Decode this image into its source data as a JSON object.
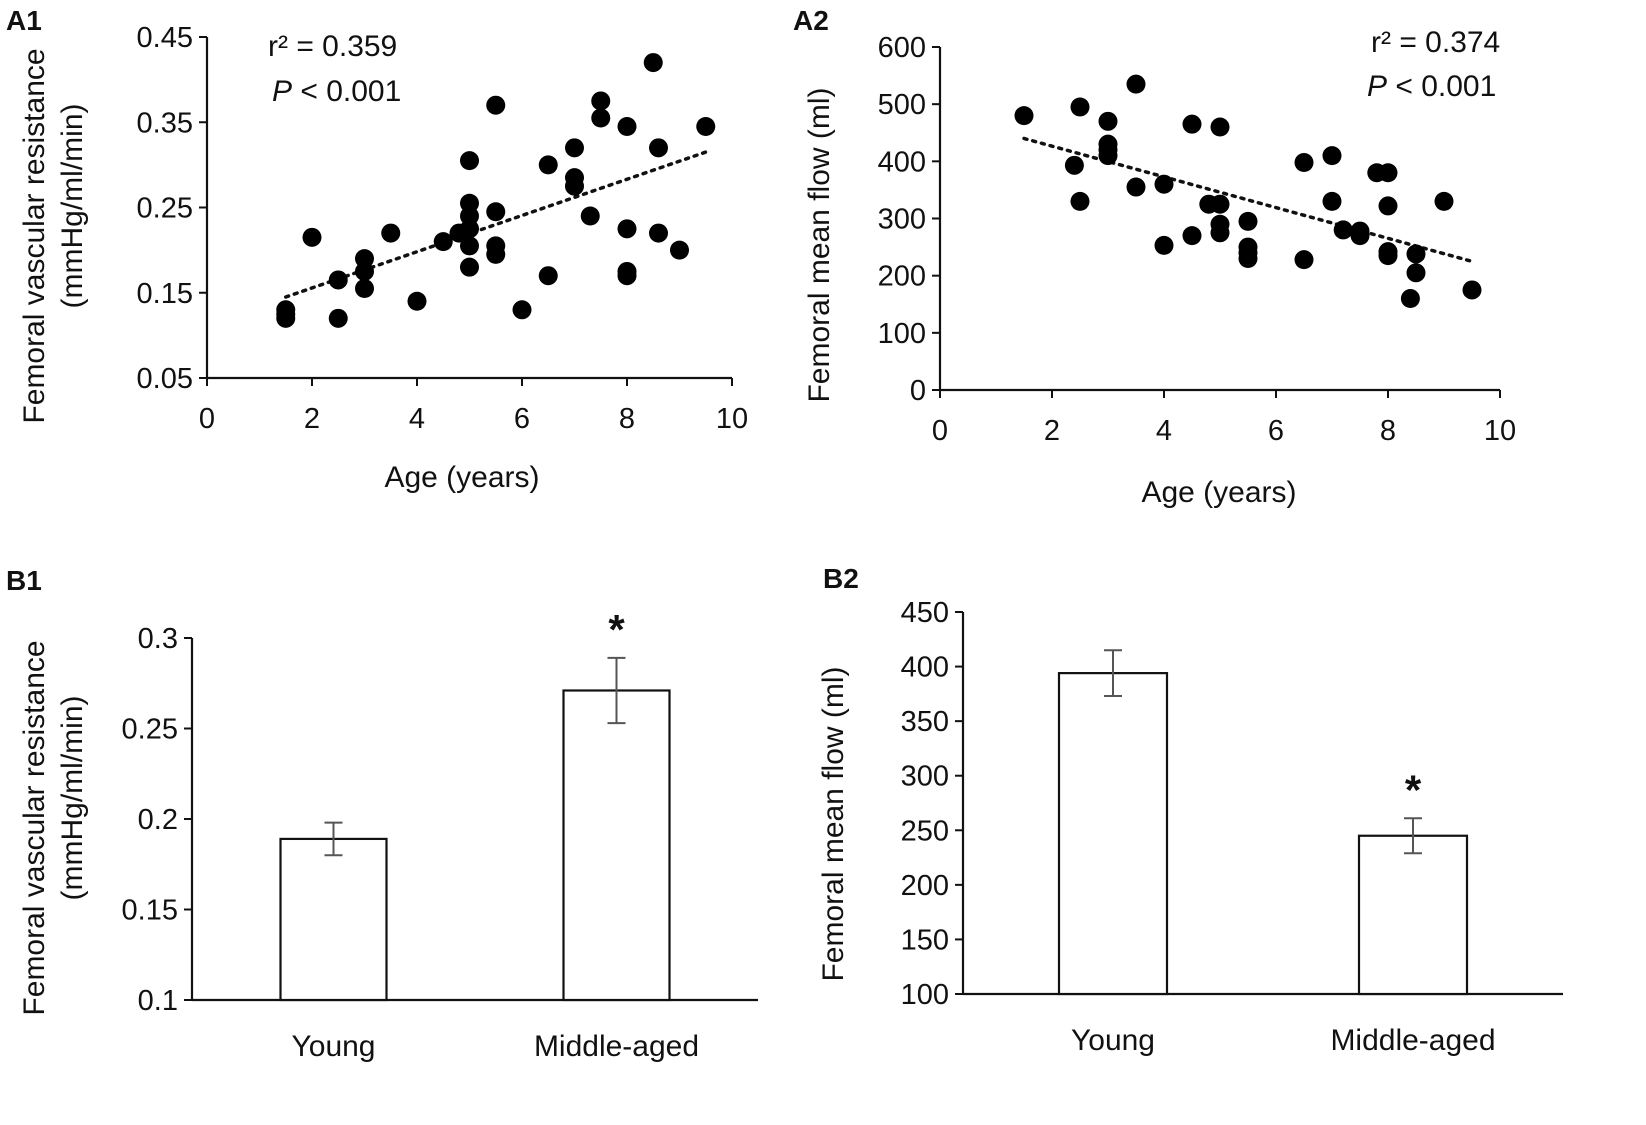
{
  "chart_data": [
    {
      "id": "a1",
      "panel_label": "A1",
      "type": "scatter",
      "xlabel": "Age (years)",
      "ylabel_line1": "Femoral vascular resistance",
      "ylabel_line2": "(mmHg/ml/min)",
      "xlim": [
        0,
        10
      ],
      "ylim": [
        0.05,
        0.45
      ],
      "x_ticks": [
        0,
        2,
        4,
        6,
        8,
        10
      ],
      "x_tick_labels": [
        "0",
        "2",
        "4",
        "6",
        "8",
        "10"
      ],
      "y_ticks": [
        0.05,
        0.15,
        0.25,
        0.35,
        0.45
      ],
      "y_tick_labels": [
        "0.05",
        "0.15",
        "0.25",
        "0.35",
        "0.45"
      ],
      "stats": {
        "r2_label": "r² = 0.359",
        "p_letter": "P",
        "p_rest": " < 0.001"
      },
      "trendline": {
        "x": [
          1.5,
          9.5
        ],
        "y": [
          0.145,
          0.315
        ]
      },
      "points": [
        [
          1.5,
          0.13
        ],
        [
          1.5,
          0.12
        ],
        [
          1.5,
          0.125
        ],
        [
          2.0,
          0.215
        ],
        [
          2.5,
          0.165
        ],
        [
          2.5,
          0.12
        ],
        [
          3.0,
          0.19
        ],
        [
          3.0,
          0.175
        ],
        [
          3.0,
          0.155
        ],
        [
          3.5,
          0.22
        ],
        [
          4.0,
          0.14
        ],
        [
          4.5,
          0.21
        ],
        [
          4.8,
          0.22
        ],
        [
          5.0,
          0.305
        ],
        [
          5.0,
          0.255
        ],
        [
          5.0,
          0.24
        ],
        [
          5.0,
          0.225
        ],
        [
          5.0,
          0.205
        ],
        [
          5.0,
          0.18
        ],
        [
          5.5,
          0.37
        ],
        [
          5.5,
          0.245
        ],
        [
          5.5,
          0.205
        ],
        [
          5.5,
          0.195
        ],
        [
          6.0,
          0.13
        ],
        [
          6.5,
          0.3
        ],
        [
          6.5,
          0.17
        ],
        [
          7.0,
          0.32
        ],
        [
          7.0,
          0.285
        ],
        [
          7.0,
          0.275
        ],
        [
          7.3,
          0.24
        ],
        [
          7.5,
          0.375
        ],
        [
          7.5,
          0.355
        ],
        [
          8.0,
          0.345
        ],
        [
          8.0,
          0.225
        ],
        [
          8.0,
          0.175
        ],
        [
          8.0,
          0.17
        ],
        [
          8.5,
          0.42
        ],
        [
          8.6,
          0.32
        ],
        [
          8.6,
          0.22
        ],
        [
          9.0,
          0.2
        ],
        [
          9.5,
          0.345
        ]
      ]
    },
    {
      "id": "a2",
      "panel_label": "A2",
      "type": "scatter",
      "xlabel": "Age (years)",
      "ylabel_line1": "Femoral mean flow (ml)",
      "ylabel_line2": "",
      "xlim": [
        0,
        10
      ],
      "ylim": [
        0,
        600
      ],
      "x_ticks": [
        0,
        2,
        4,
        6,
        8,
        10
      ],
      "x_tick_labels": [
        "0",
        "2",
        "4",
        "6",
        "8",
        "10"
      ],
      "y_ticks": [
        0,
        100,
        200,
        300,
        400,
        500,
        600
      ],
      "y_tick_labels": [
        "0",
        "100",
        "200",
        "300",
        "400",
        "500",
        "600"
      ],
      "stats": {
        "r2_label": "r² = 0.374",
        "p_letter": "P",
        "p_rest": " < 0.001"
      },
      "trendline": {
        "x": [
          1.5,
          9.5
        ],
        "y": [
          440,
          225
        ]
      },
      "points": [
        [
          1.5,
          480
        ],
        [
          2.4,
          393
        ],
        [
          2.5,
          495
        ],
        [
          2.5,
          330
        ],
        [
          3.0,
          470
        ],
        [
          3.0,
          430
        ],
        [
          3.0,
          420
        ],
        [
          3.0,
          410
        ],
        [
          3.5,
          535
        ],
        [
          3.5,
          355
        ],
        [
          4.0,
          360
        ],
        [
          4.0,
          253
        ],
        [
          4.5,
          465
        ],
        [
          4.5,
          270
        ],
        [
          4.8,
          325
        ],
        [
          5.0,
          460
        ],
        [
          5.0,
          325
        ],
        [
          5.0,
          290
        ],
        [
          5.0,
          275
        ],
        [
          5.5,
          295
        ],
        [
          5.5,
          250
        ],
        [
          5.5,
          240
        ],
        [
          5.5,
          230
        ],
        [
          6.5,
          398
        ],
        [
          6.5,
          228
        ],
        [
          7.0,
          410
        ],
        [
          7.0,
          330
        ],
        [
          7.2,
          280
        ],
        [
          7.5,
          278
        ],
        [
          7.5,
          270
        ],
        [
          7.8,
          380
        ],
        [
          8.0,
          380
        ],
        [
          8.0,
          322
        ],
        [
          8.0,
          242
        ],
        [
          8.0,
          235
        ],
        [
          8.4,
          160
        ],
        [
          8.5,
          238
        ],
        [
          8.5,
          205
        ],
        [
          9.0,
          330
        ],
        [
          9.5,
          175
        ]
      ]
    },
    {
      "id": "b1",
      "panel_label": "B1",
      "type": "bar",
      "ylabel_line1": "Femoral vascular resistance",
      "ylabel_line2": "(mmHg/ml/min)",
      "categories": [
        "Young",
        "Middle-aged"
      ],
      "values": [
        0.189,
        0.271
      ],
      "errors": [
        0.009,
        0.018
      ],
      "significance": [
        "",
        "*"
      ],
      "ylim": [
        0.1,
        0.3
      ],
      "y_ticks": [
        0.1,
        0.15,
        0.2,
        0.25,
        0.3
      ],
      "y_tick_labels": [
        "0.1",
        "0.15",
        "0.2",
        "0.25",
        "0.3"
      ]
    },
    {
      "id": "b2",
      "panel_label": "B2",
      "type": "bar",
      "ylabel_line1": "Femoral mean flow (ml)",
      "ylabel_line2": "",
      "categories": [
        "Young",
        "Middle-aged"
      ],
      "values": [
        394,
        245
      ],
      "errors": [
        21,
        16
      ],
      "significance": [
        "",
        "*"
      ],
      "ylim": [
        100,
        450
      ],
      "y_ticks": [
        100,
        150,
        200,
        250,
        300,
        350,
        400,
        450
      ],
      "y_tick_labels": [
        "100",
        "150",
        "200",
        "250",
        "300",
        "350",
        "400",
        "450"
      ]
    }
  ]
}
